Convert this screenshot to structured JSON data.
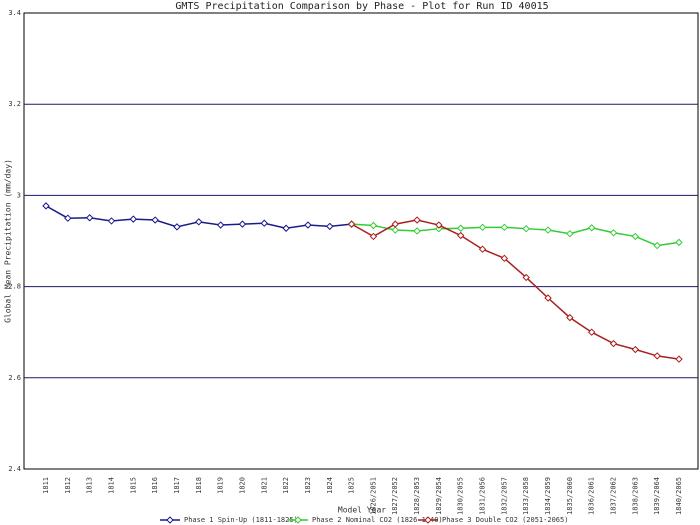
{
  "chart_data": {
    "type": "line",
    "title": "GMTS Precipitation Comparison by Phase - Plot for Run ID 40015",
    "x_label": "Model Year",
    "y_label": "Global Mean Precipitation (mm/day)",
    "categories": [
      "1811",
      "1812",
      "1813",
      "1814",
      "1815",
      "1816",
      "1817",
      "1818",
      "1819",
      "1820",
      "1821",
      "1822",
      "1823",
      "1824",
      "1825",
      "1826/2051",
      "1827/2052",
      "1828/2053",
      "1829/2054",
      "1830/2055",
      "1831/2056",
      "1832/2057",
      "1833/2058",
      "1834/2059",
      "1835/2060",
      "1836/2061",
      "1837/2062",
      "1838/2063",
      "1839/2064",
      "1840/2065"
    ],
    "ylim": [
      2.4,
      3.4
    ],
    "yticks": [
      2.4,
      2.6,
      2.8,
      3,
      3.2,
      3.4
    ],
    "grid": true,
    "legend": "bottom",
    "series": [
      {
        "name": "Phase 1 Spin-Up (1811-1825)",
        "color": "#1a1a8c",
        "values": [
          2.977,
          2.95,
          2.951,
          2.944,
          2.948,
          2.946,
          2.931,
          2.942,
          2.935,
          2.937,
          2.939,
          2.928,
          2.935,
          2.932,
          2.937,
          null,
          null,
          null,
          null,
          null,
          null,
          null,
          null,
          null,
          null,
          null,
          null,
          null,
          null,
          null
        ]
      },
      {
        "name": "Phase 2 Nominal CO2 (1826-1840)",
        "color": "#33cc33",
        "values": [
          null,
          null,
          null,
          null,
          null,
          null,
          null,
          null,
          null,
          null,
          null,
          null,
          null,
          null,
          2.937,
          2.934,
          2.924,
          2.922,
          2.927,
          2.928,
          2.93,
          2.93,
          2.927,
          2.924,
          2.916,
          2.929,
          2.918,
          2.91,
          2.89,
          2.897
        ]
      },
      {
        "name": "Phase 3 Double CO2 (2051-2065)",
        "color": "#aa1e1e",
        "values": [
          null,
          null,
          null,
          null,
          null,
          null,
          null,
          null,
          null,
          null,
          null,
          null,
          null,
          null,
          2.937,
          2.91,
          2.937,
          2.946,
          2.935,
          2.912,
          2.882,
          2.862,
          2.82,
          2.775,
          2.732,
          2.7,
          2.675,
          2.662,
          2.648,
          2.641
        ]
      }
    ]
  }
}
